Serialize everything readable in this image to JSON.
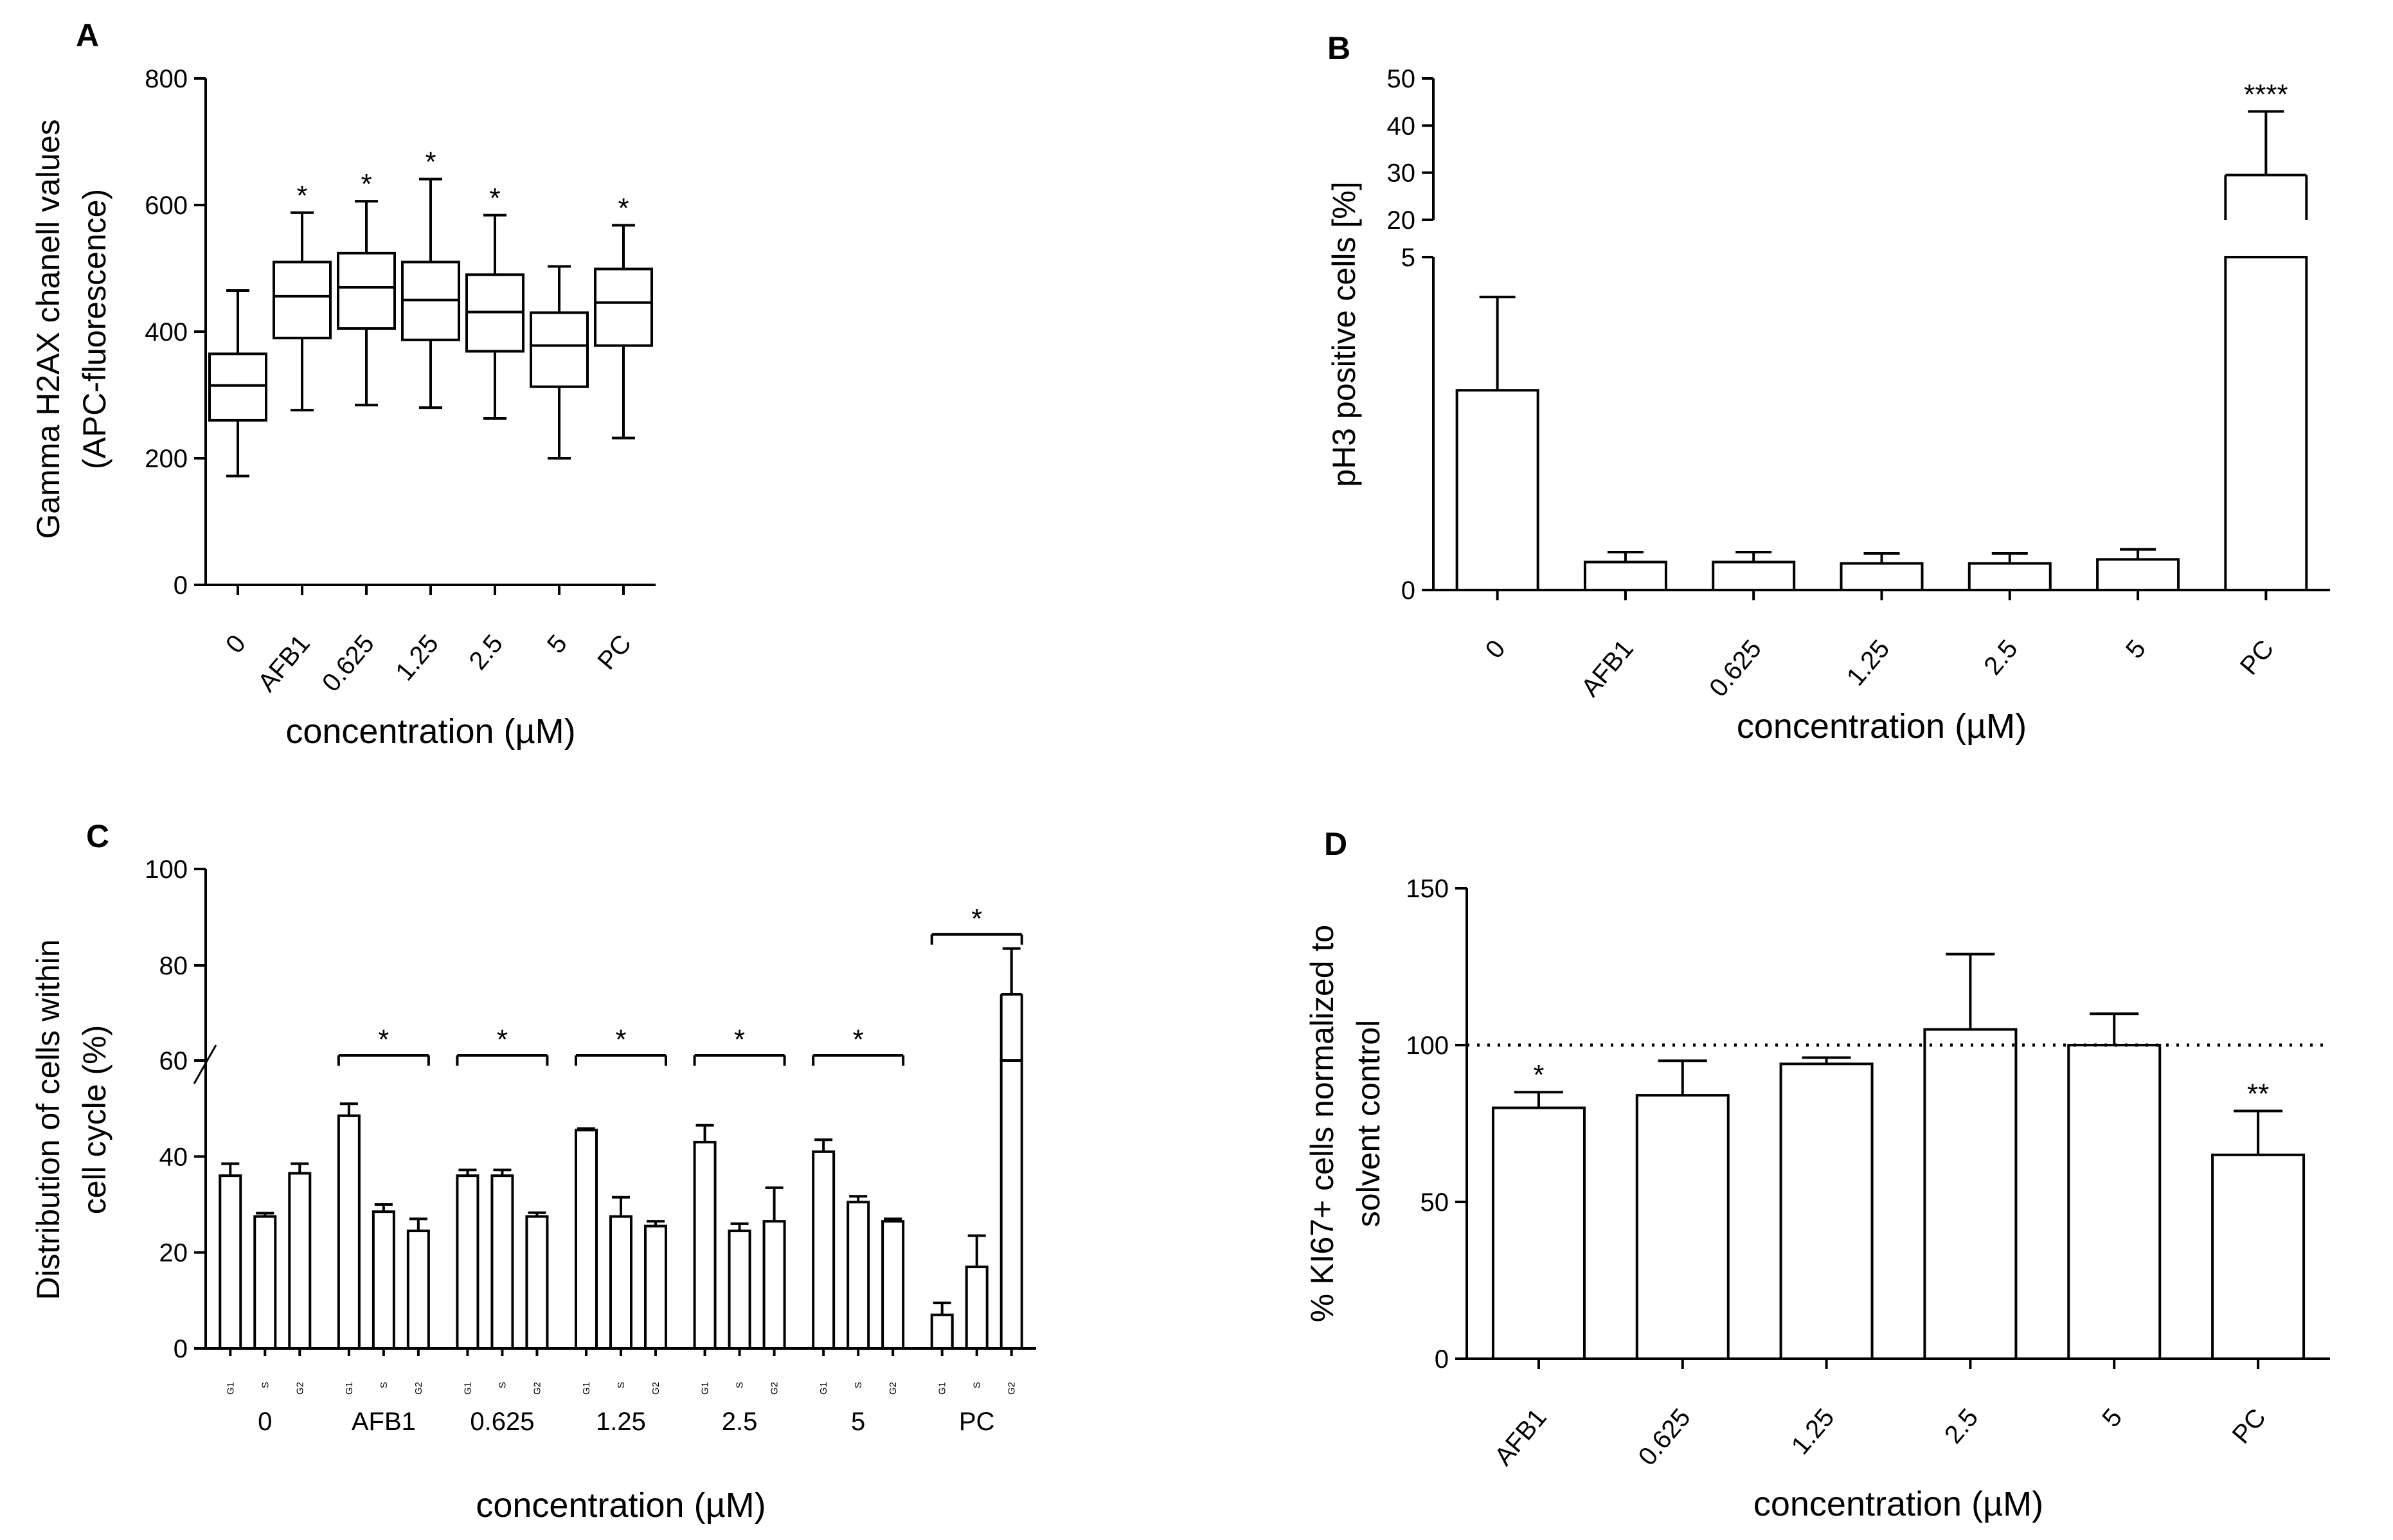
{
  "chart_data": [
    {
      "panel": "A",
      "type": "box",
      "categories": [
        "0",
        "AFB1",
        "0.625",
        "1.25",
        "2.5",
        "5",
        "PC"
      ],
      "ylabel_lines": [
        "Gamma H2AX chanell values",
        "(APC-fluorescence)"
      ],
      "xlabel": "concentration (µM)",
      "ylim": [
        0,
        800
      ],
      "yticks": [
        "0",
        "200",
        "400",
        "600",
        "800"
      ],
      "boxes": [
        {
          "min": 172,
          "q1": 260,
          "median": 315,
          "q3": 365,
          "max": 465,
          "sig": ""
        },
        {
          "min": 276,
          "q1": 390,
          "median": 456,
          "q3": 510,
          "max": 588,
          "sig": "*"
        },
        {
          "min": 284,
          "q1": 405,
          "median": 470,
          "q3": 524,
          "max": 606,
          "sig": "*"
        },
        {
          "min": 280,
          "q1": 387,
          "median": 450,
          "q3": 510,
          "max": 641,
          "sig": "*"
        },
        {
          "min": 263,
          "q1": 369,
          "median": 431,
          "q3": 490,
          "max": 584,
          "sig": "*"
        },
        {
          "min": 200,
          "q1": 313,
          "median": 378,
          "q3": 430,
          "max": 503,
          "sig": ""
        },
        {
          "min": 232,
          "q1": 378,
          "median": 446,
          "q3": 499,
          "max": 568,
          "sig": "*"
        }
      ]
    },
    {
      "panel": "B",
      "type": "bar",
      "categories": [
        "0",
        "AFB1",
        "0.625",
        "1.25",
        "2.5",
        "5",
        "PC"
      ],
      "ylabel": "pH3 positive cells [%]",
      "xlabel": "concentration (µM)",
      "axis_break": true,
      "lower_ylim": [
        0,
        5
      ],
      "lower_yticks": [
        "0",
        "5"
      ],
      "upper_ylim": [
        20,
        50
      ],
      "upper_yticks": [
        "20",
        "30",
        "40",
        "50"
      ],
      "values": [
        3.0,
        0.42,
        0.42,
        0.4,
        0.4,
        0.46,
        29.5
      ],
      "errors": [
        1.4,
        0.15,
        0.15,
        0.15,
        0.15,
        0.15,
        13.5
      ],
      "annotations": [
        "",
        "",
        "",
        "",
        "",
        "",
        "****"
      ]
    },
    {
      "panel": "C",
      "type": "bar",
      "groups": [
        "0",
        "AFB1",
        "0.625",
        "1.25",
        "2.5",
        "5",
        "PC"
      ],
      "phases": [
        "G1",
        "S",
        "G2"
      ],
      "ylabel_lines": [
        "Distribution of cells within",
        "cell cycle (%)"
      ],
      "xlabel": "concentration (µM)",
      "axis_break": true,
      "lower_ylim": [
        0,
        60
      ],
      "lower_yticks": [
        "0",
        "20",
        "40",
        "60"
      ],
      "upper_ylim": [
        60,
        100
      ],
      "upper_yticks": [
        "80",
        "100"
      ],
      "values": [
        [
          36,
          27.5,
          36.5
        ],
        [
          48.5,
          28.5,
          24.5
        ],
        [
          36,
          36,
          27.5
        ],
        [
          45.5,
          27.5,
          25.5
        ],
        [
          43,
          24.5,
          26.5
        ],
        [
          41,
          30.5,
          26.5
        ],
        [
          7,
          17,
          74
        ]
      ],
      "errors": [
        [
          2.5,
          0.7,
          2
        ],
        [
          2.5,
          1.5,
          2.5
        ],
        [
          1.2,
          1.2,
          0.8
        ],
        [
          0.3,
          4,
          1
        ],
        [
          3.5,
          1.5,
          7
        ],
        [
          2.5,
          1.2,
          0.5
        ],
        [
          2.5,
          6.5,
          9.5
        ]
      ],
      "group_sig": [
        "",
        "*",
        "*",
        "*",
        "*",
        "*",
        "*"
      ]
    },
    {
      "panel": "D",
      "type": "bar",
      "categories": [
        "AFB1",
        "0.625",
        "1.25",
        "2.5",
        "5",
        "PC"
      ],
      "ylabel_lines": [
        "% KI67+ cells normalized to",
        "solvent control"
      ],
      "xlabel": "concentration (µM)",
      "ylim": [
        0,
        150
      ],
      "yticks": [
        "0",
        "50",
        "100",
        "150"
      ],
      "reference_line": 100,
      "values": [
        80,
        84,
        94,
        105,
        100,
        65
      ],
      "errors": [
        5,
        11,
        2,
        24,
        10,
        14
      ],
      "annotations": [
        "*",
        "",
        "",
        "",
        "",
        "**"
      ]
    }
  ]
}
